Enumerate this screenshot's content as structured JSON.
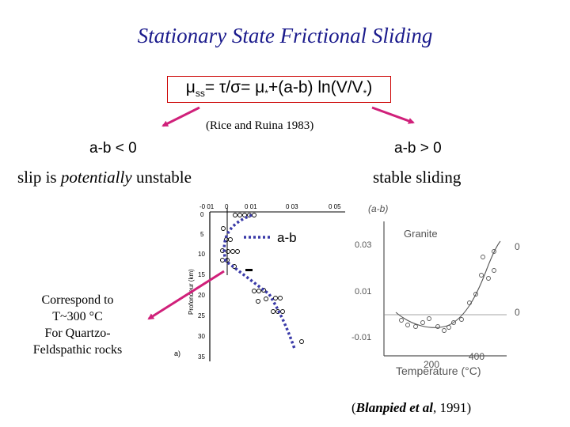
{
  "title": "Stationary State Frictional Sliding",
  "equation": {
    "mu": "μ",
    "ss_sub": "ss",
    "eq_part1": "= τ/σ= μ",
    "star_sub": "*",
    "eq_part2": "+(a-b) ln(V/V",
    "eq_part3": ")"
  },
  "citation_rice": "(Rice and Ruina 1983)",
  "left_branch": {
    "condition": "a-b < 0",
    "statement_prefix": "slip is ",
    "statement_italic": "potentially",
    "statement_suffix": " unstable"
  },
  "right_branch": {
    "condition": "a-b > 0",
    "statement": "stable sliding"
  },
  "depth_plot": {
    "top_ticks": [
      "-0 01",
      "0",
      "0 01",
      "0 03",
      "0 05"
    ],
    "depth_ticks": [
      "0",
      "5",
      "10",
      "15",
      "20",
      "25",
      "30",
      "35"
    ],
    "axis_label": "Profondeur (km)",
    "legend_label": "a-b",
    "panel_label": "a)"
  },
  "temp_plot": {
    "ylabel": "(a-b)",
    "rock": "Granite",
    "y_ticks": [
      "0.03",
      "0.01",
      "-0.01"
    ],
    "right_ticks": [
      "0",
      "0"
    ],
    "x_ticks": [
      "200",
      "400"
    ],
    "xlabel": "Temperature (°C)"
  },
  "note": {
    "line1": "Correspond to",
    "line2": "T~300 °C",
    "line3": "For Quartzo-",
    "line4": "Feldspathic rocks"
  },
  "citation_blanpied_open": "(",
  "citation_blanpied_author": "Blanpied et al",
  "citation_blanpied_year": ", 1991)",
  "colors": {
    "title": "#1a1a8c",
    "arrows": "#d0207a",
    "box_border": "#cc0000",
    "dotted_line": "#3a3aa8"
  }
}
